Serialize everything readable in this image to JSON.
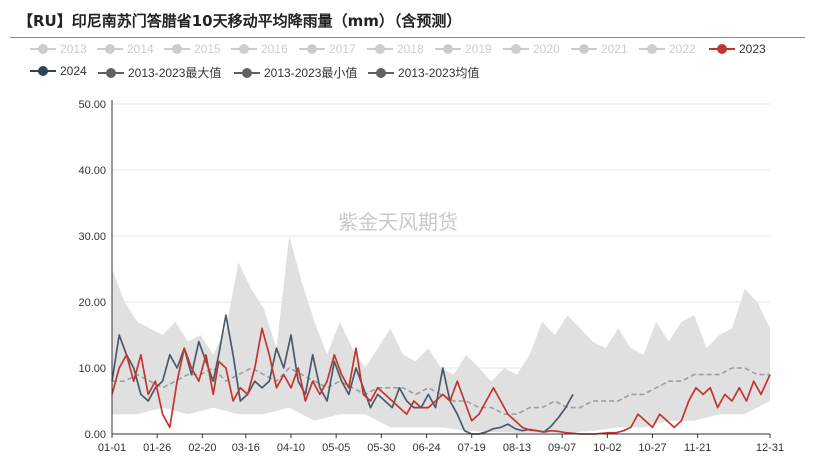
{
  "chart_data": {
    "type": "line",
    "title": "【RU】印尼南苏门答腊省10天移动平均降雨量（mm）（含预测）",
    "watermark": "紫金天风期货",
    "x_axis": {
      "type": "date",
      "tick_labels": [
        "01-01",
        "01-26",
        "02-20",
        "03-16",
        "04-10",
        "05-05",
        "05-30",
        "06-24",
        "07-19",
        "08-13",
        "09-07",
        "10-02",
        "10-27",
        "11-21",
        "12-31"
      ],
      "range": [
        "01-01",
        "12-31"
      ]
    },
    "y_axis": {
      "tick_labels": [
        "0.00",
        "10.00",
        "20.00",
        "30.00",
        "40.00",
        "50.00"
      ],
      "min": 0,
      "max": 50
    },
    "grid": "horizontal",
    "legend_position": "top",
    "legend": [
      {
        "name": "2013",
        "color": "#cccccc",
        "active": false
      },
      {
        "name": "2014",
        "color": "#cccccc",
        "active": false
      },
      {
        "name": "2015",
        "color": "#cccccc",
        "active": false
      },
      {
        "name": "2016",
        "color": "#cccccc",
        "active": false
      },
      {
        "name": "2017",
        "color": "#cccccc",
        "active": false
      },
      {
        "name": "2018",
        "color": "#cccccc",
        "active": false
      },
      {
        "name": "2019",
        "color": "#cccccc",
        "active": false
      },
      {
        "name": "2020",
        "color": "#cccccc",
        "active": false
      },
      {
        "name": "2021",
        "color": "#cccccc",
        "active": false
      },
      {
        "name": "2022",
        "color": "#cccccc",
        "active": false
      },
      {
        "name": "2023",
        "color": "#c23531",
        "active": true
      },
      {
        "name": "2024",
        "color": "#2f4554",
        "active": true
      },
      {
        "name": "2013-2023最大值",
        "color": "#616161",
        "active": true
      },
      {
        "name": "2013-2023最小值",
        "color": "#616161",
        "active": true
      },
      {
        "name": "2013-2023均值",
        "color": "#616161",
        "active": true
      }
    ],
    "series": [
      {
        "name": "2013-2023最大值",
        "style": "area_upper",
        "color": "#e0e0e0",
        "x": [
          "01-01",
          "01-08",
          "01-15",
          "01-22",
          "01-29",
          "02-05",
          "02-12",
          "02-19",
          "02-26",
          "03-05",
          "03-12",
          "03-19",
          "03-26",
          "04-02",
          "04-09",
          "04-16",
          "04-23",
          "04-30",
          "05-07",
          "05-14",
          "05-21",
          "05-28",
          "06-04",
          "06-11",
          "06-18",
          "06-25",
          "07-02",
          "07-09",
          "07-16",
          "07-23",
          "07-30",
          "08-06",
          "08-13",
          "08-20",
          "08-27",
          "09-03",
          "09-10",
          "09-17",
          "09-24",
          "10-01",
          "10-08",
          "10-15",
          "10-22",
          "10-29",
          "11-05",
          "11-12",
          "11-19",
          "11-26",
          "12-03",
          "12-10",
          "12-17",
          "12-24",
          "12-31"
        ],
        "y": [
          25,
          20,
          17,
          16,
          15,
          17,
          14,
          15,
          12,
          16,
          26,
          22,
          19,
          13,
          30,
          23,
          17,
          12,
          17,
          13,
          10,
          13,
          16,
          12,
          11,
          13,
          10,
          9,
          12,
          10,
          8,
          10,
          9,
          12,
          17,
          15,
          18,
          16,
          14,
          13,
          16,
          13,
          12,
          17,
          14,
          17,
          18,
          13,
          15,
          16,
          22,
          20,
          16
        ]
      },
      {
        "name": "2013-2023最小值",
        "style": "area_lower",
        "color": "#e0e0e0",
        "x": [
          "01-01",
          "01-15",
          "01-29",
          "02-12",
          "02-26",
          "03-12",
          "03-26",
          "04-09",
          "04-23",
          "05-07",
          "05-21",
          "06-04",
          "06-18",
          "07-02",
          "07-16",
          "07-30",
          "08-13",
          "08-27",
          "09-10",
          "09-24",
          "10-08",
          "10-22",
          "11-05",
          "11-19",
          "12-03",
          "12-17",
          "12-31"
        ],
        "y": [
          3,
          3,
          4,
          3,
          4,
          3,
          3,
          4,
          2,
          3,
          3,
          1,
          1,
          1,
          0.5,
          0.3,
          0.2,
          0.2,
          0.2,
          0.5,
          1,
          1,
          2,
          2,
          3,
          3,
          5
        ]
      },
      {
        "name": "2013-2023均值",
        "style": "dashed",
        "color": "#9e9e9e",
        "x": [
          "01-01",
          "01-08",
          "01-15",
          "01-22",
          "01-29",
          "02-05",
          "02-12",
          "02-19",
          "02-26",
          "03-05",
          "03-12",
          "03-19",
          "03-26",
          "04-02",
          "04-09",
          "04-16",
          "04-23",
          "04-30",
          "05-07",
          "05-14",
          "05-21",
          "05-28",
          "06-04",
          "06-11",
          "06-18",
          "06-25",
          "07-02",
          "07-09",
          "07-16",
          "07-23",
          "07-30",
          "08-06",
          "08-13",
          "08-20",
          "08-27",
          "09-03",
          "09-10",
          "09-17",
          "09-24",
          "10-01",
          "10-08",
          "10-15",
          "10-22",
          "10-29",
          "11-05",
          "11-12",
          "11-19",
          "11-26",
          "12-03",
          "12-10",
          "12-17",
          "12-24",
          "12-31"
        ],
        "y": [
          8,
          8,
          9,
          8,
          7,
          8,
          9,
          9,
          10,
          8,
          9,
          10,
          9,
          8,
          10,
          9,
          8,
          7,
          8,
          7,
          6,
          7,
          7,
          7,
          6,
          7,
          6,
          5,
          5,
          4,
          4,
          3,
          3,
          4,
          4,
          5,
          4,
          4,
          5,
          5,
          5,
          6,
          6,
          7,
          8,
          8,
          9,
          9,
          9,
          10,
          10,
          9,
          9
        ]
      },
      {
        "name": "2024",
        "style": "solid",
        "color": "#4a5a69",
        "x": [
          "01-01",
          "01-05",
          "01-09",
          "01-13",
          "01-17",
          "01-21",
          "01-25",
          "01-29",
          "02-02",
          "02-06",
          "02-10",
          "02-14",
          "02-18",
          "02-22",
          "02-26",
          "03-01",
          "03-05",
          "03-09",
          "03-13",
          "03-17",
          "03-21",
          "03-25",
          "03-29",
          "04-02",
          "04-06",
          "04-10",
          "04-14",
          "04-18",
          "04-22",
          "04-26",
          "04-30",
          "05-04",
          "05-08",
          "05-12",
          "05-16",
          "05-20",
          "05-24",
          "05-28",
          "06-01",
          "06-05",
          "06-09",
          "06-13",
          "06-17",
          "06-21",
          "06-25",
          "06-29",
          "07-03",
          "07-07",
          "07-11",
          "07-15",
          "07-19",
          "07-23",
          "07-27",
          "07-31",
          "08-04",
          "08-08",
          "08-12",
          "08-16",
          "08-20",
          "08-24",
          "08-28",
          "09-01",
          "09-05",
          "09-09",
          "09-13"
        ],
        "y": [
          8,
          15,
          12,
          10,
          6,
          5,
          7,
          8,
          12,
          10,
          13,
          9,
          14,
          11,
          8,
          12,
          18,
          12,
          5,
          6,
          8,
          7,
          8,
          13,
          10,
          15,
          8,
          6,
          12,
          7,
          5,
          11,
          8,
          6,
          10,
          7,
          4,
          6,
          5,
          4,
          7,
          5,
          4,
          4,
          6,
          4,
          10,
          5,
          3,
          0.5,
          0,
          0,
          0.3,
          0.8,
          1,
          1.5,
          0.8,
          0.5,
          0.7,
          0.5,
          0.3,
          1.2,
          2.5,
          4,
          6
        ]
      },
      {
        "name": "2023",
        "style": "solid",
        "color": "#c23531",
        "x": [
          "01-01",
          "01-05",
          "01-09",
          "01-13",
          "01-17",
          "01-21",
          "01-25",
          "01-29",
          "02-02",
          "02-06",
          "02-10",
          "02-14",
          "02-18",
          "02-22",
          "02-26",
          "03-01",
          "03-05",
          "03-09",
          "03-13",
          "03-17",
          "03-21",
          "03-25",
          "03-29",
          "04-02",
          "04-06",
          "04-10",
          "04-14",
          "04-18",
          "04-22",
          "04-26",
          "04-30",
          "05-04",
          "05-08",
          "05-12",
          "05-16",
          "05-20",
          "05-24",
          "05-28",
          "06-01",
          "06-05",
          "06-09",
          "06-13",
          "06-17",
          "06-21",
          "06-25",
          "06-29",
          "07-03",
          "07-07",
          "07-11",
          "07-15",
          "07-19",
          "07-23",
          "07-27",
          "07-31",
          "08-04",
          "08-08",
          "08-12",
          "08-16",
          "08-20",
          "08-24",
          "08-28",
          "09-01",
          "09-05",
          "09-09",
          "09-13",
          "09-17",
          "09-21",
          "09-25",
          "09-29",
          "10-03",
          "10-07",
          "10-11",
          "10-15",
          "10-19",
          "10-23",
          "10-27",
          "10-31",
          "11-04",
          "11-08",
          "11-12",
          "11-16",
          "11-20",
          "11-24",
          "11-28",
          "12-02",
          "12-06",
          "12-10",
          "12-14",
          "12-18",
          "12-22",
          "12-26",
          "12-31"
        ],
        "y": [
          6,
          10,
          12,
          8,
          12,
          6,
          8,
          3,
          1,
          8,
          13,
          10,
          8,
          12,
          6,
          11,
          10,
          5,
          7,
          6,
          10,
          16,
          12,
          7,
          9,
          7,
          10,
          5,
          8,
          6,
          8,
          12,
          9,
          7,
          13,
          6,
          5,
          7,
          6,
          5,
          4,
          3,
          5,
          4,
          4,
          5,
          6,
          5,
          8,
          5,
          2,
          3,
          5,
          7,
          5,
          3,
          2,
          1,
          0.6,
          0.5,
          0.3,
          0.5,
          0.4,
          0.2,
          0.1,
          0,
          0,
          0,
          0.1,
          0.2,
          0.2,
          0.5,
          1,
          3,
          2,
          1,
          3,
          2,
          1,
          2,
          5,
          7,
          6,
          7,
          4,
          6,
          5,
          7,
          5,
          8,
          6,
          9
        ]
      }
    ]
  }
}
